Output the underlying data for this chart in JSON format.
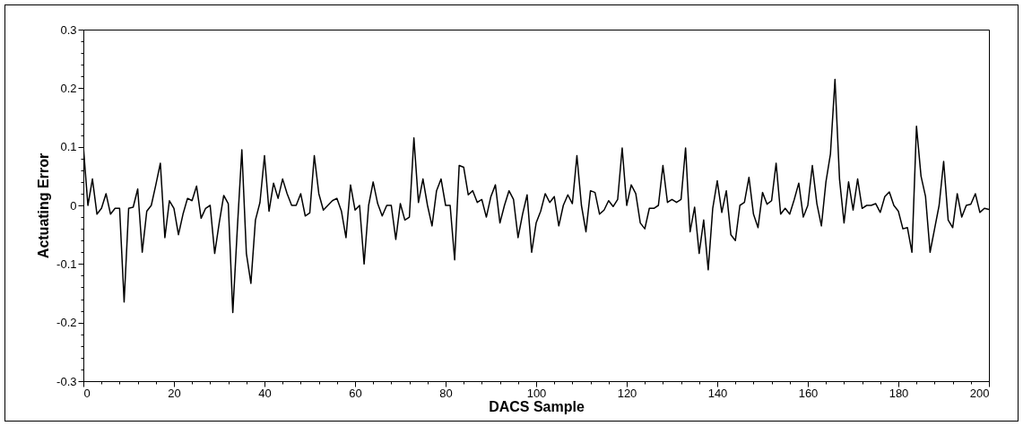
{
  "chart_data": {
    "type": "line",
    "xlabel": "DACS Sample",
    "ylabel": "Actuating Error",
    "x": [
      0,
      1,
      2,
      3,
      4,
      5,
      6,
      7,
      8,
      9,
      10,
      11,
      12,
      13,
      14,
      15,
      16,
      17,
      18,
      19,
      20,
      21,
      22,
      23,
      24,
      25,
      26,
      27,
      28,
      29,
      30,
      31,
      32,
      33,
      34,
      35,
      36,
      37,
      38,
      39,
      40,
      41,
      42,
      43,
      44,
      45,
      46,
      47,
      48,
      49,
      50,
      51,
      52,
      53,
      54,
      55,
      56,
      57,
      58,
      59,
      60,
      61,
      62,
      63,
      64,
      65,
      66,
      67,
      68,
      69,
      70,
      71,
      72,
      73,
      74,
      75,
      76,
      77,
      78,
      79,
      80,
      81,
      82,
      83,
      84,
      85,
      86,
      87,
      88,
      89,
      90,
      91,
      92,
      93,
      94,
      95,
      96,
      97,
      98,
      99,
      100,
      101,
      102,
      103,
      104,
      105,
      106,
      107,
      108,
      109,
      110,
      111,
      112,
      113,
      114,
      115,
      116,
      117,
      118,
      119,
      120,
      121,
      122,
      123,
      124,
      125,
      126,
      127,
      128,
      129,
      130,
      131,
      132,
      133,
      134,
      135,
      136,
      137,
      138,
      139,
      140,
      141,
      142,
      143,
      144,
      145,
      146,
      147,
      148,
      149,
      150,
      151,
      152,
      153,
      154,
      155,
      156,
      157,
      158,
      159,
      160,
      161,
      162,
      163,
      164,
      165,
      166,
      167,
      168,
      169,
      170,
      171,
      172,
      173,
      174,
      175,
      176,
      177,
      178,
      179,
      180,
      181,
      182,
      183,
      184,
      185,
      186,
      187,
      188,
      189,
      190,
      191,
      192,
      193,
      194,
      195,
      196,
      197,
      198,
      199,
      200
    ],
    "series": [
      {
        "color": "#000000",
        "values": [
          0.1,
          0.0,
          0.045,
          -0.015,
          -0.005,
          0.02,
          -0.015,
          -0.005,
          -0.005,
          -0.165,
          -0.005,
          -0.003,
          0.028,
          -0.08,
          -0.01,
          0.0,
          0.035,
          0.072,
          -0.055,
          0.008,
          -0.005,
          -0.05,
          -0.015,
          0.012,
          0.008,
          0.033,
          -0.022,
          -0.005,
          0.0,
          -0.082,
          -0.03,
          0.017,
          0.003,
          -0.183,
          -0.04,
          0.095,
          -0.082,
          -0.133,
          -0.025,
          0.005,
          0.085,
          -0.01,
          0.038,
          0.012,
          0.045,
          0.02,
          0.0,
          0.0,
          0.02,
          -0.018,
          -0.013,
          0.085,
          0.02,
          -0.008,
          0.0,
          0.008,
          0.012,
          -0.01,
          -0.055,
          0.035,
          -0.008,
          0.0,
          -0.1,
          0.0,
          0.04,
          0.003,
          -0.018,
          0.0,
          0.0,
          -0.058,
          0.003,
          -0.025,
          -0.02,
          0.115,
          0.005,
          0.045,
          0.0,
          -0.035,
          0.025,
          0.045,
          0.0,
          0.0,
          -0.093,
          0.068,
          0.065,
          0.018,
          0.025,
          0.005,
          0.01,
          -0.02,
          0.015,
          0.035,
          -0.03,
          0.0,
          0.025,
          0.01,
          -0.055,
          -0.015,
          0.018,
          -0.08,
          -0.03,
          -0.01,
          0.02,
          0.005,
          0.015,
          -0.035,
          0.0,
          0.018,
          0.003,
          0.085,
          0.0,
          -0.045,
          0.025,
          0.022,
          -0.015,
          -0.008,
          0.008,
          -0.002,
          0.01,
          0.098,
          0.0,
          0.035,
          0.02,
          -0.03,
          -0.04,
          -0.005,
          -0.005,
          0.0,
          0.068,
          0.005,
          0.01,
          0.005,
          0.01,
          0.098,
          -0.045,
          -0.003,
          -0.082,
          -0.025,
          -0.11,
          -0.005,
          0.042,
          -0.012,
          0.025,
          -0.05,
          -0.06,
          0.0,
          0.005,
          0.048,
          -0.015,
          -0.038,
          0.022,
          0.002,
          0.008,
          0.072,
          -0.015,
          -0.005,
          -0.015,
          0.01,
          0.038,
          -0.02,
          0.0,
          0.068,
          0.003,
          -0.035,
          0.04,
          0.088,
          0.215,
          0.045,
          -0.03,
          0.04,
          -0.008,
          0.045,
          -0.005,
          0.0,
          0.0,
          0.003,
          -0.012,
          0.015,
          0.023,
          0.0,
          -0.01,
          -0.04,
          -0.038,
          -0.08,
          0.135,
          0.05,
          0.015,
          -0.08,
          -0.04,
          0.0,
          0.075,
          -0.025,
          -0.038,
          0.02,
          -0.02,
          0.0,
          0.002,
          0.02,
          -0.012,
          -0.005,
          -0.007
        ]
      }
    ],
    "xlim": [
      0,
      200
    ],
    "xticks": [
      0,
      {
        "value": 4,
        "label": null
      },
      {
        "value": 8,
        "label": null
      },
      {
        "value": 12,
        "label": null
      },
      {
        "value": 16,
        "label": null
      },
      20,
      {
        "value": 24,
        "label": null
      },
      {
        "value": 28,
        "label": null
      },
      {
        "value": 32,
        "label": null
      },
      {
        "value": 36,
        "label": null
      },
      40,
      {
        "value": 44,
        "label": null
      },
      {
        "value": 48,
        "label": null
      },
      {
        "value": 52,
        "label": null
      },
      {
        "value": 56,
        "label": null
      },
      60,
      {
        "value": 64,
        "label": null
      },
      {
        "value": 68,
        "label": null
      },
      {
        "value": 72,
        "label": null
      },
      {
        "value": 76,
        "label": null
      },
      80,
      {
        "value": 84,
        "label": null
      },
      {
        "value": 88,
        "label": null
      },
      {
        "value": 92,
        "label": null
      },
      {
        "value": 96,
        "label": null
      },
      100,
      {
        "value": 104,
        "label": null
      },
      {
        "value": 108,
        "label": null
      },
      {
        "value": 112,
        "label": null
      },
      {
        "value": 116,
        "label": null
      },
      120,
      {
        "value": 124,
        "label": null
      },
      {
        "value": 128,
        "label": null
      },
      {
        "value": 132,
        "label": null
      },
      {
        "value": 136,
        "label": null
      },
      140,
      {
        "value": 144,
        "label": null
      },
      {
        "value": 148,
        "label": null
      },
      {
        "value": 152,
        "label": null
      },
      {
        "value": 156,
        "label": null
      },
      160,
      {
        "value": 164,
        "label": null
      },
      {
        "value": 168,
        "label": null
      },
      {
        "value": 172,
        "label": null
      },
      {
        "value": 176,
        "label": null
      },
      180,
      {
        "value": 184,
        "label": null
      },
      {
        "value": 188,
        "label": null
      },
      {
        "value": 192,
        "label": null
      },
      {
        "value": 196,
        "label": null
      },
      200
    ],
    "ylim": [
      -0.3,
      0.3
    ],
    "yticks": [
      -0.3,
      {
        "value": -0.28,
        "label": null
      },
      {
        "value": -0.26,
        "label": null
      },
      {
        "value": -0.24,
        "label": null
      },
      {
        "value": -0.22,
        "label": null
      },
      -0.2,
      {
        "value": -0.18,
        "label": null
      },
      {
        "value": -0.16,
        "label": null
      },
      {
        "value": -0.14,
        "label": null
      },
      {
        "value": -0.12,
        "label": null
      },
      -0.1,
      {
        "value": -0.08,
        "label": null
      },
      {
        "value": -0.06,
        "label": null
      },
      {
        "value": -0.04,
        "label": null
      },
      {
        "value": -0.02,
        "label": null
      },
      0,
      {
        "value": 0.02,
        "label": null
      },
      {
        "value": 0.04,
        "label": null
      },
      {
        "value": 0.06,
        "label": null
      },
      {
        "value": 0.08,
        "label": null
      },
      0.1,
      {
        "value": 0.12,
        "label": null
      },
      {
        "value": 0.14,
        "label": null
      },
      {
        "value": 0.16,
        "label": null
      },
      {
        "value": 0.18,
        "label": null
      },
      0.2,
      {
        "value": 0.22,
        "label": null
      },
      {
        "value": 0.24,
        "label": null
      },
      {
        "value": 0.26,
        "label": null
      },
      {
        "value": 0.28,
        "label": null
      },
      0.3
    ],
    "grid": false,
    "marker": "none",
    "line_style": "solid"
  }
}
